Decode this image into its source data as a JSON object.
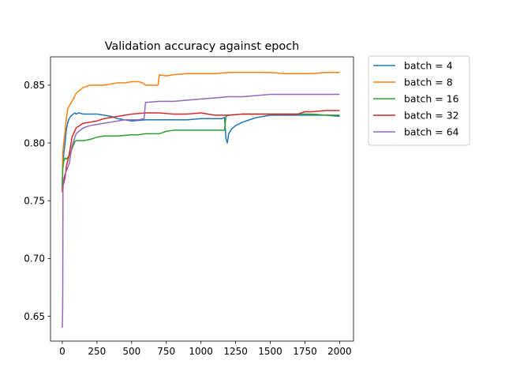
{
  "chart_data": {
    "type": "line",
    "title": "Validation accuracy against epoch",
    "xlabel": "",
    "ylabel": "",
    "xlim": [
      -85,
      2100
    ],
    "ylim": [
      0.6285,
      0.8745
    ],
    "xticks": [
      0,
      250,
      500,
      750,
      1000,
      1250,
      1500,
      1750,
      2000
    ],
    "yticks": [
      0.65,
      0.7,
      0.75,
      0.8,
      0.85
    ],
    "grid": false,
    "legend_position": "outside-top-right",
    "series": [
      {
        "name": "batch = 4",
        "color": "#1f77b4",
        "x": [
          0,
          3,
          10,
          20,
          30,
          40,
          50,
          60,
          70,
          80,
          90,
          100,
          120,
          150,
          200,
          250,
          300,
          350,
          400,
          450,
          500,
          600,
          700,
          800,
          900,
          1000,
          1100,
          1150,
          1170,
          1180,
          1190,
          1200,
          1220,
          1250,
          1300,
          1350,
          1400,
          1500,
          1600,
          1700,
          1800,
          1900,
          2000
        ],
        "y": [
          0.762,
          0.778,
          0.79,
          0.8,
          0.812,
          0.818,
          0.821,
          0.823,
          0.824,
          0.825,
          0.826,
          0.825,
          0.826,
          0.825,
          0.825,
          0.825,
          0.824,
          0.823,
          0.821,
          0.82,
          0.819,
          0.82,
          0.82,
          0.82,
          0.82,
          0.821,
          0.821,
          0.821,
          0.822,
          0.804,
          0.8,
          0.808,
          0.812,
          0.815,
          0.818,
          0.82,
          0.822,
          0.824,
          0.824,
          0.824,
          0.824,
          0.824,
          0.823
        ]
      },
      {
        "name": "batch = 8",
        "color": "#ff7f0e",
        "x": [
          0,
          3,
          10,
          20,
          30,
          40,
          50,
          60,
          80,
          100,
          150,
          200,
          250,
          300,
          350,
          400,
          450,
          500,
          550,
          580,
          600,
          650,
          690,
          700,
          750,
          800,
          900,
          1000,
          1100,
          1200,
          1300,
          1400,
          1500,
          1600,
          1700,
          1800,
          1900,
          2000
        ],
        "y": [
          0.757,
          0.79,
          0.8,
          0.81,
          0.822,
          0.83,
          0.832,
          0.834,
          0.838,
          0.843,
          0.848,
          0.85,
          0.85,
          0.85,
          0.851,
          0.852,
          0.852,
          0.853,
          0.853,
          0.852,
          0.85,
          0.85,
          0.85,
          0.859,
          0.858,
          0.859,
          0.86,
          0.86,
          0.86,
          0.861,
          0.861,
          0.861,
          0.861,
          0.86,
          0.86,
          0.86,
          0.861,
          0.861
        ]
      },
      {
        "name": "batch = 16",
        "color": "#2ca02c",
        "x": [
          0,
          3,
          10,
          20,
          30,
          50,
          70,
          90,
          100,
          150,
          200,
          250,
          300,
          400,
          500,
          550,
          600,
          700,
          750,
          800,
          900,
          1000,
          1100,
          1150,
          1170,
          1180,
          1200,
          1300,
          1400,
          1500,
          1600,
          1700,
          1800,
          1900,
          2000
        ],
        "y": [
          0.762,
          0.777,
          0.784,
          0.787,
          0.786,
          0.789,
          0.795,
          0.801,
          0.802,
          0.802,
          0.803,
          0.805,
          0.806,
          0.806,
          0.807,
          0.807,
          0.808,
          0.808,
          0.81,
          0.811,
          0.811,
          0.811,
          0.811,
          0.811,
          0.811,
          0.823,
          0.824,
          0.825,
          0.825,
          0.825,
          0.825,
          0.825,
          0.825,
          0.824,
          0.824
        ]
      },
      {
        "name": "batch = 32",
        "color": "#d62728",
        "x": [
          0,
          3,
          10,
          20,
          30,
          50,
          70,
          100,
          150,
          200,
          250,
          300,
          400,
          500,
          600,
          700,
          800,
          900,
          1000,
          1100,
          1200,
          1300,
          1400,
          1500,
          1600,
          1700,
          1750,
          1800,
          1900,
          2000
        ],
        "y": [
          0.758,
          0.762,
          0.765,
          0.77,
          0.78,
          0.79,
          0.805,
          0.813,
          0.817,
          0.818,
          0.819,
          0.821,
          0.823,
          0.825,
          0.826,
          0.826,
          0.825,
          0.825,
          0.826,
          0.824,
          0.824,
          0.825,
          0.825,
          0.825,
          0.825,
          0.825,
          0.827,
          0.827,
          0.828,
          0.828
        ]
      },
      {
        "name": "batch = 64",
        "color": "#9467bd",
        "x": [
          0,
          3,
          5,
          10,
          20,
          30,
          50,
          70,
          100,
          150,
          200,
          250,
          300,
          350,
          400,
          450,
          500,
          550,
          590,
          600,
          700,
          800,
          900,
          1000,
          1100,
          1200,
          1300,
          1400,
          1500,
          1600,
          1700,
          1800,
          1900,
          2000
        ],
        "y": [
          0.64,
          0.66,
          0.76,
          0.769,
          0.773,
          0.776,
          0.782,
          0.797,
          0.808,
          0.813,
          0.815,
          0.816,
          0.817,
          0.818,
          0.819,
          0.82,
          0.82,
          0.82,
          0.821,
          0.835,
          0.836,
          0.836,
          0.837,
          0.838,
          0.839,
          0.84,
          0.84,
          0.841,
          0.842,
          0.842,
          0.842,
          0.842,
          0.842,
          0.842
        ]
      }
    ]
  }
}
